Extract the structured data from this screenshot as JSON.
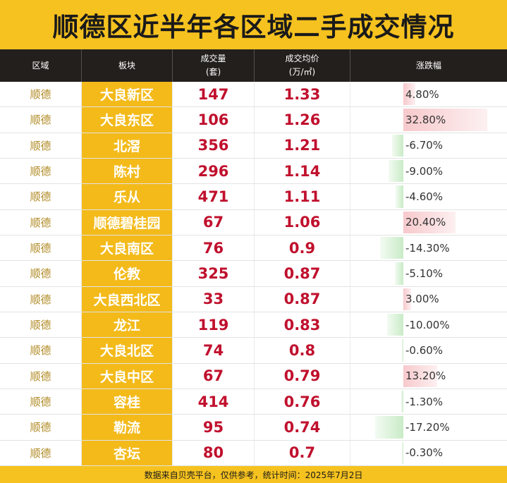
{
  "title": "顺德区近半年各区域二手成交情况",
  "columns": {
    "area": "区域",
    "block": "板块",
    "volume_line1": "成交量",
    "volume_line2": "(套)",
    "price_line1": "成交均价",
    "price_line2": "(万/㎡)",
    "change": "涨跌幅"
  },
  "footer": "数据来自贝壳平台，仅供参考，统计时间：2025年7月2日",
  "colors": {
    "title_bg": "#f6c21f",
    "header_bg": "#231f1d",
    "block_bg": "#f3ba1a",
    "value_red": "#c0102d",
    "positive_bar": "#f7c9cc",
    "negative_bar": "#c9ebc7"
  },
  "chart_data": {
    "type": "table",
    "title": "顺德区近半年各区域二手成交情况",
    "columns": [
      "区域",
      "板块",
      "成交量(套)",
      "成交均价(万/㎡)",
      "涨跌幅"
    ],
    "rows": [
      {
        "area": "顺德",
        "block": "大良新区",
        "volume": "147",
        "price": "1.33",
        "change": "4.80%",
        "change_value": 4.8
      },
      {
        "area": "顺德",
        "block": "大良东区",
        "volume": "106",
        "price": "1.26",
        "change": "32.80%",
        "change_value": 32.8
      },
      {
        "area": "顺德",
        "block": "北滘",
        "volume": "356",
        "price": "1.21",
        "change": "-6.70%",
        "change_value": -6.7
      },
      {
        "area": "顺德",
        "block": "陈村",
        "volume": "296",
        "price": "1.14",
        "change": "-9.00%",
        "change_value": -9.0
      },
      {
        "area": "顺德",
        "block": "乐从",
        "volume": "471",
        "price": "1.11",
        "change": "-4.60%",
        "change_value": -4.6
      },
      {
        "area": "顺德",
        "block": "顺德碧桂园",
        "volume": "67",
        "price": "1.06",
        "change": "20.40%",
        "change_value": 20.4
      },
      {
        "area": "顺德",
        "block": "大良南区",
        "volume": "76",
        "price": "0.9",
        "change": "-14.30%",
        "change_value": -14.3
      },
      {
        "area": "顺德",
        "block": "伦教",
        "volume": "325",
        "price": "0.87",
        "change": "-5.10%",
        "change_value": -5.1
      },
      {
        "area": "顺德",
        "block": "大良西北区",
        "volume": "33",
        "price": "0.87",
        "change": "3.00%",
        "change_value": 3.0
      },
      {
        "area": "顺德",
        "block": "龙江",
        "volume": "119",
        "price": "0.83",
        "change": "-10.00%",
        "change_value": -10.0
      },
      {
        "area": "顺德",
        "block": "大良北区",
        "volume": "74",
        "price": "0.8",
        "change": "-0.60%",
        "change_value": -0.6
      },
      {
        "area": "顺德",
        "block": "大良中区",
        "volume": "67",
        "price": "0.79",
        "change": "13.20%",
        "change_value": 13.2
      },
      {
        "area": "顺德",
        "block": "容桂",
        "volume": "414",
        "price": "0.76",
        "change": "-1.30%",
        "change_value": -1.3
      },
      {
        "area": "顺德",
        "block": "勒流",
        "volume": "95",
        "price": "0.74",
        "change": "-17.20%",
        "change_value": -17.2
      },
      {
        "area": "顺德",
        "block": "杏坛",
        "volume": "80",
        "price": "0.7",
        "change": "-0.30%",
        "change_value": -0.3
      }
    ]
  }
}
